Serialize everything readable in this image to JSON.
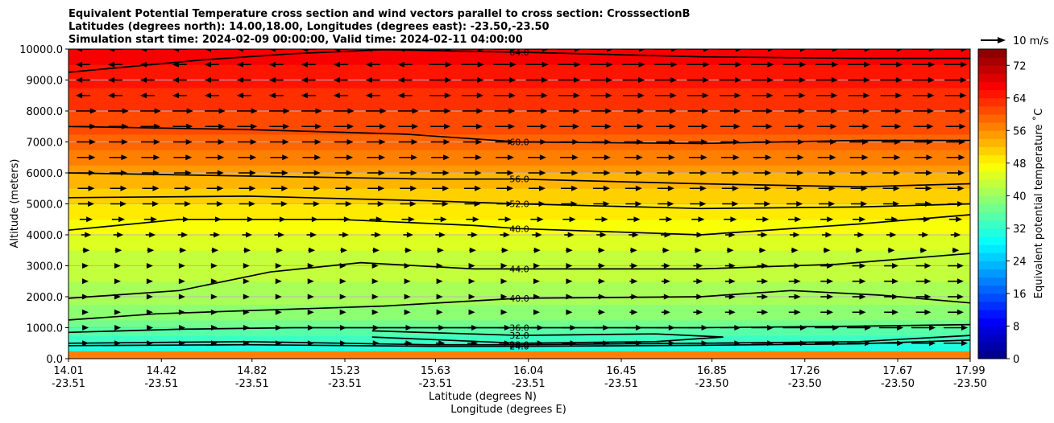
{
  "chart_data": {
    "type": "contourf",
    "title": [
      "Equivalent Potential Temperature cross section and wind vectors parallel to cross section: CrosssectionB",
      "Latitudes (degrees north): 14.00,18.00, Longitudes (degrees east): -23.50,-23.50",
      "Simulation start time: 2024-02-09 00:00:00, Valid time: 2024-02-11 04:00:00"
    ],
    "xlabel": "Latitude (degrees N)",
    "xlabel2": "Longitude (degrees E)",
    "ylabel": "Altitude (meters)",
    "xlim": [
      14.01,
      17.99
    ],
    "ylim": [
      0,
      10000
    ],
    "x_ticks": [
      {
        "lat": "14.01",
        "lon": "-23.51"
      },
      {
        "lat": "14.42",
        "lon": "-23.51"
      },
      {
        "lat": "14.82",
        "lon": "-23.51"
      },
      {
        "lat": "15.23",
        "lon": "-23.51"
      },
      {
        "lat": "15.63",
        "lon": "-23.51"
      },
      {
        "lat": "16.04",
        "lon": "-23.51"
      },
      {
        "lat": "16.45",
        "lon": "-23.51"
      },
      {
        "lat": "16.85",
        "lon": "-23.50"
      },
      {
        "lat": "17.26",
        "lon": "-23.50"
      },
      {
        "lat": "17.67",
        "lon": "-23.50"
      },
      {
        "lat": "17.99",
        "lon": "-23.50"
      }
    ],
    "y_ticks": [
      {
        "value": 0,
        "label": "0.0"
      },
      {
        "value": 1000,
        "label": "1000.0"
      },
      {
        "value": 2000,
        "label": "2000.0"
      },
      {
        "value": 3000,
        "label": "3000.0"
      },
      {
        "value": 4000,
        "label": "4000.0"
      },
      {
        "value": 5000,
        "label": "5000.0"
      },
      {
        "value": 6000,
        "label": "6000.0"
      },
      {
        "value": 7000,
        "label": "7000.0"
      },
      {
        "value": 8000,
        "label": "8000.0"
      },
      {
        "value": 9000,
        "label": "9000.0"
      },
      {
        "value": 10000,
        "label": "10000.0"
      }
    ],
    "colorbar": {
      "label": "Equivalent potential temperature ˚C",
      "range": [
        0,
        76
      ],
      "ticks": [
        0,
        8,
        16,
        24,
        32,
        40,
        48,
        56,
        64,
        72
      ],
      "tick_labels": [
        "0",
        "8",
        "16",
        "24",
        "32",
        "40",
        "48",
        "56",
        "64",
        "72"
      ],
      "colormap": "jet"
    },
    "quiver_key": {
      "label": "10 m/s",
      "magnitude": 10
    },
    "contour_lines": [
      {
        "level": 64,
        "label": "64.0",
        "points": [
          [
            14.01,
            9250
          ],
          [
            14.6,
            9650
          ],
          [
            15.0,
            9850
          ],
          [
            15.4,
            9980
          ],
          [
            16.0,
            9900
          ],
          [
            16.8,
            9750
          ],
          [
            17.5,
            9700
          ],
          [
            17.99,
            9700
          ]
        ]
      },
      {
        "level": 60,
        "label": "60.0",
        "points": [
          [
            14.01,
            7500
          ],
          [
            14.8,
            7400
          ],
          [
            15.5,
            7250
          ],
          [
            16.0,
            7000
          ],
          [
            16.8,
            6950
          ],
          [
            17.5,
            7050
          ],
          [
            17.99,
            7050
          ]
        ]
      },
      {
        "level": 56,
        "label": "56.0",
        "points": [
          [
            14.01,
            6000
          ],
          [
            14.8,
            5900
          ],
          [
            15.6,
            5800
          ],
          [
            16.0,
            5800
          ],
          [
            16.8,
            5650
          ],
          [
            17.5,
            5550
          ],
          [
            17.99,
            5650
          ]
        ]
      },
      {
        "level": 52,
        "label": "52.0",
        "points": [
          [
            14.01,
            5200
          ],
          [
            14.8,
            5250
          ],
          [
            15.6,
            5100
          ],
          [
            16.0,
            5000
          ],
          [
            16.8,
            4850
          ],
          [
            17.5,
            4900
          ],
          [
            17.99,
            5000
          ]
        ]
      },
      {
        "level": 48,
        "label": "48.0",
        "points": [
          [
            14.01,
            4150
          ],
          [
            14.5,
            4500
          ],
          [
            15.2,
            4500
          ],
          [
            15.8,
            4300
          ],
          [
            16.0,
            4200
          ],
          [
            16.8,
            4000
          ],
          [
            17.5,
            4350
          ],
          [
            17.99,
            4650
          ]
        ]
      },
      {
        "level": 44,
        "label": "44.0",
        "points": [
          [
            14.01,
            1950
          ],
          [
            14.5,
            2200
          ],
          [
            14.9,
            2800
          ],
          [
            15.3,
            3100
          ],
          [
            15.8,
            2900
          ],
          [
            16.0,
            2900
          ],
          [
            16.8,
            2900
          ],
          [
            17.4,
            3050
          ],
          [
            17.99,
            3400
          ]
        ]
      },
      {
        "level": 40,
        "label": "40.0",
        "points": [
          [
            14.01,
            1250
          ],
          [
            14.4,
            1450
          ],
          [
            14.8,
            1550
          ],
          [
            15.4,
            1700
          ],
          [
            16.0,
            1950
          ],
          [
            16.8,
            2000
          ],
          [
            17.2,
            2200
          ],
          [
            17.6,
            2050
          ],
          [
            17.99,
            1800
          ]
        ]
      },
      {
        "level": 36,
        "label": "36.0",
        "points": [
          [
            14.01,
            850
          ],
          [
            14.5,
            950
          ],
          [
            15.0,
            1000
          ],
          [
            15.6,
            1000
          ],
          [
            16.0,
            1000
          ],
          [
            16.8,
            1000
          ],
          [
            17.5,
            1050
          ],
          [
            17.99,
            1100
          ]
        ]
      },
      {
        "level": 32,
        "label": "32.0",
        "points": [
          [
            15.35,
            900
          ],
          [
            16.0,
            750
          ],
          [
            16.6,
            800
          ],
          [
            16.9,
            700
          ],
          [
            16.6,
            550
          ],
          [
            16.0,
            500
          ],
          [
            15.35,
            700
          ]
        ]
      },
      {
        "level": 28,
        "label": "28.0",
        "points": [
          [
            14.01,
            500
          ],
          [
            14.8,
            550
          ],
          [
            15.6,
            450
          ],
          [
            16.0,
            450
          ],
          [
            16.8,
            500
          ],
          [
            17.5,
            550
          ],
          [
            17.99,
            750
          ]
        ]
      },
      {
        "level": 24,
        "label": "24.0",
        "points": [
          [
            14.01,
            420
          ],
          [
            14.8,
            450
          ],
          [
            15.6,
            400
          ],
          [
            16.0,
            400
          ],
          [
            16.8,
            430
          ],
          [
            17.5,
            480
          ],
          [
            17.99,
            600
          ]
        ]
      }
    ],
    "wind_vectors_description": "westerly winds strongest above 5000 m and in the lowest 1500 m on the northern half"
  }
}
